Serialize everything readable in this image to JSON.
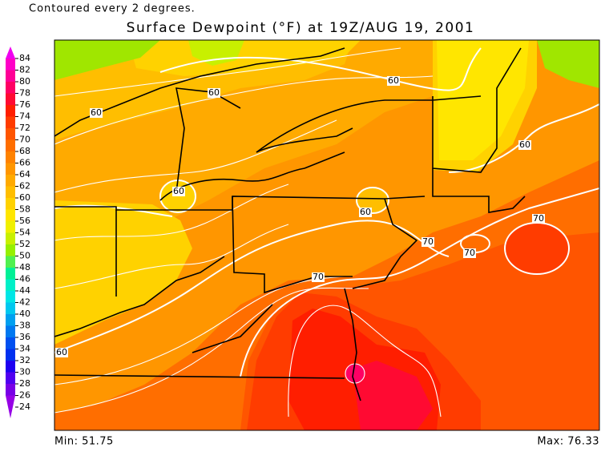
{
  "header": {
    "note": "Contoured every 2 degrees.",
    "title": "Surface Dewpoint (°F) at 19Z/AUG 19, 2001"
  },
  "colorbar": {
    "levels": [
      {
        "value": 84,
        "color": "#f000f0"
      },
      {
        "value": 82,
        "color": "#ff00c8"
      },
      {
        "value": 80,
        "color": "#ff0096"
      },
      {
        "value": 78,
        "color": "#ff0064"
      },
      {
        "value": 76,
        "color": "#ff0a32"
      },
      {
        "value": 74,
        "color": "#ff1e00"
      },
      {
        "value": 72,
        "color": "#ff3c00"
      },
      {
        "value": 70,
        "color": "#ff5500"
      },
      {
        "value": 68,
        "color": "#ff6e00"
      },
      {
        "value": 66,
        "color": "#ff8200"
      },
      {
        "value": 64,
        "color": "#ff9600"
      },
      {
        "value": 62,
        "color": "#ffaa00"
      },
      {
        "value": 60,
        "color": "#ffbe00"
      },
      {
        "value": 58,
        "color": "#ffd200"
      },
      {
        "value": 56,
        "color": "#ffe600"
      },
      {
        "value": 54,
        "color": "#f0f000"
      },
      {
        "value": 52,
        "color": "#c8f000"
      },
      {
        "value": 50,
        "color": "#96f000"
      },
      {
        "value": 48,
        "color": "#50f050"
      },
      {
        "value": 46,
        "color": "#00f096"
      },
      {
        "value": 44,
        "color": "#00f0c8"
      },
      {
        "value": 42,
        "color": "#00e6e6"
      },
      {
        "value": 40,
        "color": "#00c8f0"
      },
      {
        "value": 38,
        "color": "#00a0f0"
      },
      {
        "value": 36,
        "color": "#0078f0"
      },
      {
        "value": 34,
        "color": "#0050f0"
      },
      {
        "value": 32,
        "color": "#0030f0"
      },
      {
        "value": 30,
        "color": "#1e00f0"
      },
      {
        "value": 28,
        "color": "#5000f0"
      },
      {
        "value": 26,
        "color": "#7800e6"
      },
      {
        "value": 24,
        "color": "#9600e6"
      }
    ]
  },
  "contour_labels": [
    60,
    60,
    60,
    60,
    60,
    60,
    70,
    70,
    70,
    70,
    60
  ],
  "footer": {
    "min": "Min: 51.75",
    "max": "Max: 76.33"
  }
}
